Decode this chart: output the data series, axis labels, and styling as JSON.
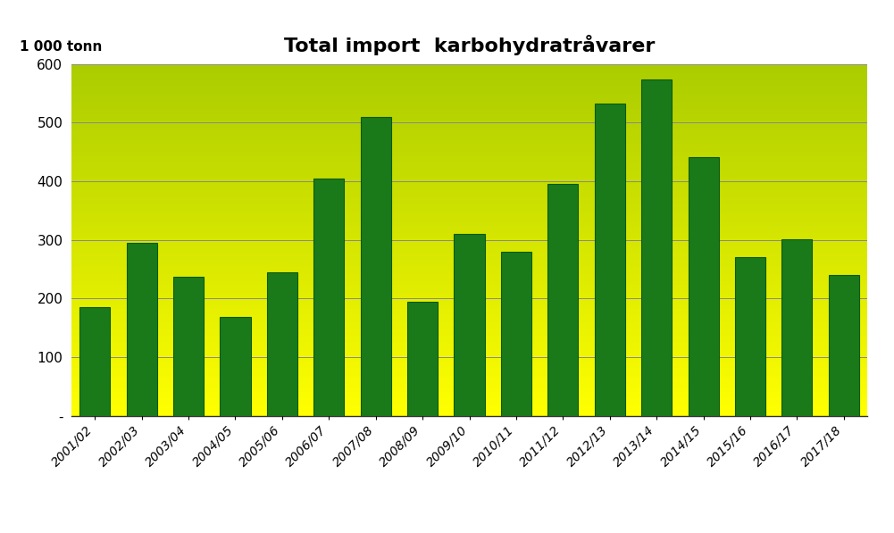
{
  "title": "Total import  karbohydratråvarer",
  "ylabel": "1 000 tonn",
  "categories": [
    "2001/02",
    "2002/03",
    "2003/04",
    "2004/05",
    "2005/06",
    "2006/07",
    "2007/08",
    "2008/09",
    "2009/10",
    "2010/11",
    "2011/12",
    "2012/13",
    "2013/14",
    "2014/15",
    "2015/16",
    "2016/17",
    "2017/18"
  ],
  "values": [
    185,
    295,
    237,
    168,
    245,
    405,
    510,
    194,
    310,
    280,
    395,
    533,
    573,
    441,
    271,
    301,
    240
  ],
  "bar_color": "#1a7a1a",
  "bar_edge_color": "#0a5a0a",
  "ylim": [
    0,
    600
  ],
  "yticks": [
    0,
    100,
    200,
    300,
    400,
    500,
    600
  ],
  "ytick_labels": [
    "-",
    "100",
    "200",
    "300",
    "400",
    "500",
    "600"
  ],
  "bg_color_bottom": "#ffff00",
  "bg_color_top": "#aacc00",
  "grid_color": "#888888",
  "title_fontsize": 16,
  "ylabel_fontsize": 11,
  "tick_fontsize": 10
}
